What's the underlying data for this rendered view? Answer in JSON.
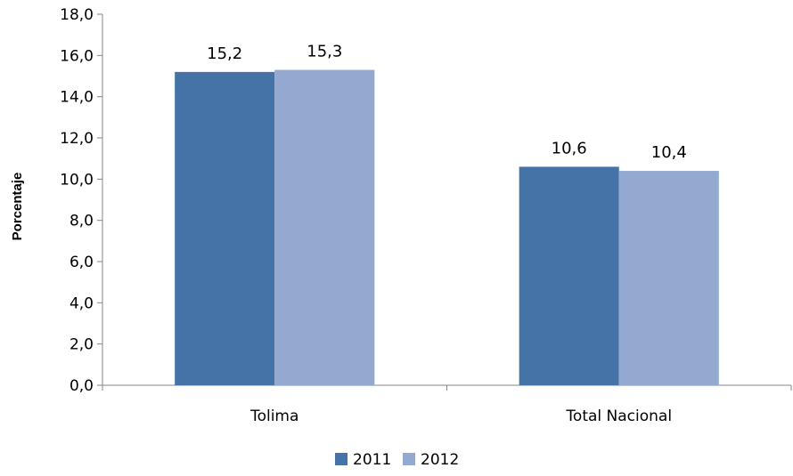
{
  "chart_data": {
    "type": "bar",
    "categories": [
      "Tolima",
      "Total Nacional"
    ],
    "series": [
      {
        "name": "2011",
        "values": [
          15.2,
          10.6
        ],
        "color": "#4572A7"
      },
      {
        "name": "2012",
        "values": [
          15.3,
          10.4
        ],
        "color": "#93A9CF"
      }
    ],
    "data_labels": [
      [
        "15,2",
        "10,6"
      ],
      [
        "15,3",
        "10,4"
      ]
    ],
    "title": "",
    "xlabel": "",
    "ylabel": "Porcentaje",
    "ylim": [
      0,
      18
    ],
    "yticks": [
      0,
      2,
      4,
      6,
      8,
      10,
      12,
      14,
      16,
      18
    ],
    "ytick_labels": [
      "0,0",
      "2,0",
      "4,0",
      "6,0",
      "8,0",
      "10,0",
      "12,0",
      "14,0",
      "16,0",
      "18,0"
    ],
    "grid": false,
    "legend_position": "bottom"
  }
}
